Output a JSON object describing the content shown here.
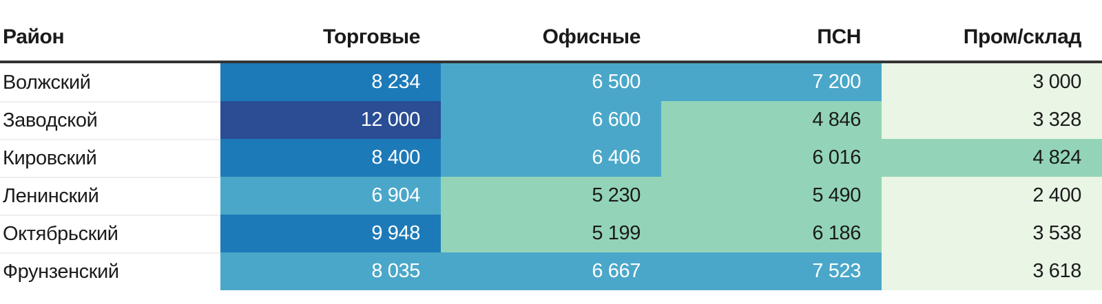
{
  "chart_data": {
    "type": "heatmap",
    "title": "",
    "x_categories": [
      "Торговые",
      "Офисные",
      "ПСН",
      "Пром/склад"
    ],
    "y_categories": [
      "Волжский",
      "Заводской",
      "Кировский",
      "Ленинский",
      "Октябрьский",
      "Фрунзенский"
    ],
    "values": [
      [
        8234,
        6500,
        7200,
        3000
      ],
      [
        12000,
        6600,
        4846,
        3328
      ],
      [
        8400,
        6406,
        6016,
        4824
      ],
      [
        6904,
        5230,
        5490,
        2400
      ],
      [
        9948,
        5199,
        6186,
        3538
      ],
      [
        8035,
        6667,
        7523,
        3618
      ]
    ],
    "legend": "none",
    "grid": false,
    "color_scale_low_to_high": [
      "#e9f5e5",
      "#93d4b8",
      "#4aa7c9",
      "#1d7ab8",
      "#2a4d94"
    ],
    "color_scale_meaning": "higher value = darker blue, lower value = light green"
  },
  "table": {
    "columns": [
      {
        "key": "district",
        "label": "Район",
        "align": "left"
      },
      {
        "key": "retail",
        "label": "Торговые",
        "align": "right"
      },
      {
        "key": "office",
        "label": "Офисные",
        "align": "right"
      },
      {
        "key": "psn",
        "label": "ПСН",
        "align": "right"
      },
      {
        "key": "industrial",
        "label": "Пром/склад",
        "align": "right"
      }
    ],
    "rows": [
      {
        "district": "Волжский",
        "cells": [
          {
            "text": "8 234",
            "tone": "blue"
          },
          {
            "text": "6 500",
            "tone": "medium"
          },
          {
            "text": "7 200",
            "tone": "medium"
          },
          {
            "text": "3 000",
            "tone": "lightest"
          }
        ]
      },
      {
        "district": "Заводской",
        "cells": [
          {
            "text": "12 000",
            "tone": "navy"
          },
          {
            "text": "6 600",
            "tone": "medium"
          },
          {
            "text": "4 846",
            "tone": "teal"
          },
          {
            "text": "3 328",
            "tone": "lightest"
          }
        ]
      },
      {
        "district": "Кировский",
        "cells": [
          {
            "text": "8 400",
            "tone": "blue"
          },
          {
            "text": "6 406",
            "tone": "medium"
          },
          {
            "text": "6 016",
            "tone": "teal"
          },
          {
            "text": "4 824",
            "tone": "teal"
          }
        ]
      },
      {
        "district": "Ленинский",
        "cells": [
          {
            "text": "6 904",
            "tone": "medium"
          },
          {
            "text": "5 230",
            "tone": "teal"
          },
          {
            "text": "5 490",
            "tone": "teal"
          },
          {
            "text": "2 400",
            "tone": "lightest"
          }
        ]
      },
      {
        "district": "Октябрьский",
        "cells": [
          {
            "text": "9 948",
            "tone": "blue"
          },
          {
            "text": "5 199",
            "tone": "teal"
          },
          {
            "text": "6 186",
            "tone": "teal"
          },
          {
            "text": "3 538",
            "tone": "lightest"
          }
        ]
      },
      {
        "district": "Фрунзенский",
        "cells": [
          {
            "text": "8 035",
            "tone": "medium"
          },
          {
            "text": "6 667",
            "tone": "medium"
          },
          {
            "text": "7 523",
            "tone": "medium"
          },
          {
            "text": "3 618",
            "tone": "lightest"
          }
        ]
      }
    ]
  },
  "palette": {
    "tones": {
      "navy": "#2a4d94",
      "blue": "#1d7ab8",
      "medium": "#4aa7c9",
      "teal": "#93d4b8",
      "lightest": "#e9f5e5"
    },
    "text_on_dark": "#ffffff",
    "text_on_light": "#1b1b1b",
    "header_border": "#333333"
  }
}
